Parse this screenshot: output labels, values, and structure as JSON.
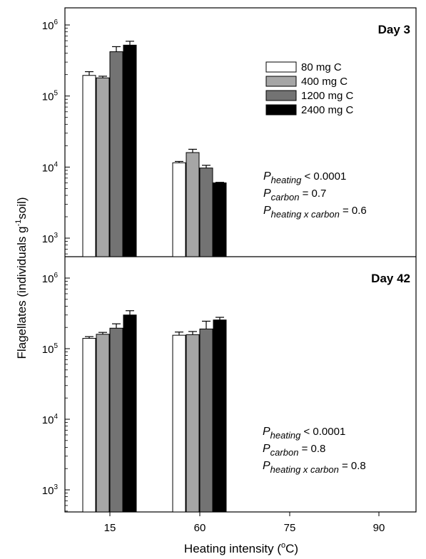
{
  "chart_data": {
    "type": "bar",
    "y_scale": "log",
    "ylabel_main": "Flagellates (individuals g",
    "ylabel_sup": "-1",
    "ylabel_tail": "soil)",
    "xlabel_main": "Heating intensity (",
    "xlabel_sup": "o",
    "xlabel_tail": "C)",
    "categories": [
      "15",
      "60",
      "75",
      "90"
    ],
    "legend": {
      "entries": [
        {
          "label": "80 mg C",
          "color": "#ffffff"
        },
        {
          "label": "400 mg C",
          "color": "#a6a6a6"
        },
        {
          "label": "1200 mg C",
          "color": "#737373"
        },
        {
          "label": "2400 mg C",
          "color": "#000000"
        }
      ]
    },
    "panels": [
      {
        "title": "Day 3",
        "ylim": [
          500,
          1000000
        ],
        "ticks": [
          {
            "base": "10",
            "exp": "3",
            "value": 1000
          },
          {
            "base": "10",
            "exp": "4",
            "value": 10000
          },
          {
            "base": "10",
            "exp": "5",
            "value": 100000
          },
          {
            "base": "10",
            "exp": "6",
            "value": 1000000
          }
        ],
        "series": [
          {
            "name": "80 mg C",
            "values": [
              195000,
              11500,
              null,
              null
            ],
            "errors": [
              220000,
              12000,
              null,
              null
            ]
          },
          {
            "name": "400 mg C",
            "values": [
              180000,
              16000,
              null,
              null
            ],
            "errors": [
              190000,
              17800,
              null,
              null
            ]
          },
          {
            "name": "1200 mg C",
            "values": [
              420000,
              9700,
              null,
              null
            ],
            "errors": [
              495000,
              10600,
              null,
              null
            ]
          },
          {
            "name": "2400 mg C",
            "values": [
              520000,
              6000,
              null,
              null
            ],
            "errors": [
              590000,
              6100,
              null,
              null
            ]
          }
        ],
        "stats": [
          {
            "p": "P",
            "sub": "heating",
            "rest": " < 0.0001"
          },
          {
            "p": "P",
            "sub": "carbon",
            "rest": " = 0.7"
          },
          {
            "p": "P",
            "sub": "heating x carbon",
            "rest": " = 0.6"
          }
        ]
      },
      {
        "title": "Day 42",
        "ylim": [
          500,
          1500000
        ],
        "ticks": [
          {
            "base": "10",
            "exp": "3",
            "value": 1000
          },
          {
            "base": "10",
            "exp": "4",
            "value": 10000
          },
          {
            "base": "10",
            "exp": "5",
            "value": 100000
          },
          {
            "base": "10",
            "exp": "6",
            "value": 1000000
          }
        ],
        "series": [
          {
            "name": "80 mg C",
            "values": [
              140000,
              155000,
              null,
              null
            ],
            "errors": [
              148000,
              172000,
              null,
              null
            ]
          },
          {
            "name": "400 mg C",
            "values": [
              160000,
              158000,
              null,
              null
            ],
            "errors": [
              170000,
              175000,
              null,
              null
            ]
          },
          {
            "name": "1200 mg C",
            "values": [
              195000,
              190000,
              null,
              null
            ],
            "errors": [
              225000,
              245000,
              null,
              null
            ]
          },
          {
            "name": "2400 mg C",
            "values": [
              300000,
              255000,
              null,
              null
            ],
            "errors": [
              345000,
              278000,
              null,
              null
            ]
          }
        ],
        "stats": [
          {
            "p": "P",
            "sub": "heating",
            "rest": " < 0.0001"
          },
          {
            "p": "P",
            "sub": "carbon",
            "rest": " = 0.8"
          },
          {
            "p": "P",
            "sub": "heating x carbon",
            "rest": " = 0.8"
          }
        ]
      }
    ]
  }
}
